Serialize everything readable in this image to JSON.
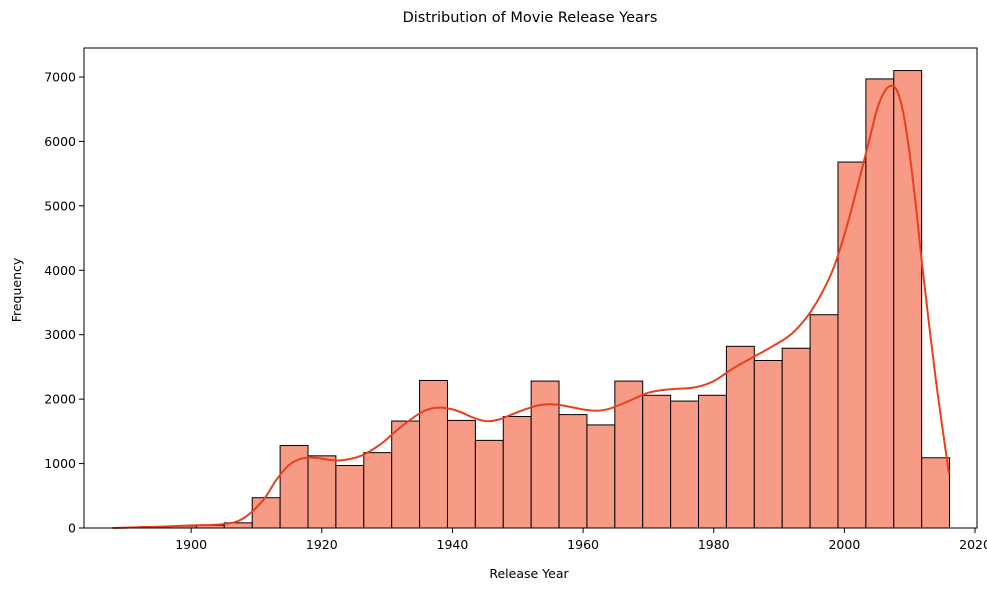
{
  "chart_data": {
    "type": "bar",
    "subtype": "histogram",
    "title": "Distribution of Movie Release Years",
    "xlabel": "Release Year",
    "ylabel": "Frequency",
    "xlim": [
      1883.6,
      2020.3
    ],
    "ylim": [
      0,
      7450
    ],
    "x_ticks": [
      1900,
      1920,
      1940,
      1960,
      1980,
      2000,
      2020
    ],
    "y_ticks": [
      0,
      1000,
      2000,
      3000,
      4000,
      5000,
      6000,
      7000
    ],
    "bins": {
      "start": 1888,
      "width": 4.27,
      "counts": [
        5,
        20,
        30,
        40,
        80,
        470,
        1280,
        1120,
        970,
        1170,
        1660,
        2290,
        1670,
        1360,
        1730,
        2280,
        1760,
        1600,
        2280,
        2060,
        1970,
        2060,
        2820,
        2600,
        2790,
        3310,
        5680,
        6970,
        7100,
        1090
      ]
    },
    "kde": {
      "x": [
        1888,
        1895,
        1900,
        1905,
        1908,
        1911,
        1913,
        1915,
        1917,
        1919,
        1921,
        1923,
        1926,
        1929,
        1932,
        1935,
        1937,
        1939,
        1941,
        1943,
        1945,
        1947,
        1950,
        1953,
        1955,
        1957,
        1960,
        1962,
        1964,
        1967,
        1970,
        1973,
        1977,
        1980,
        1983,
        1986,
        1989,
        1992,
        1995,
        1998,
        2000,
        2002,
        2004,
        2005,
        2006,
        2007,
        2008,
        2009,
        2010,
        2011,
        2012,
        2014,
        2016
      ],
      "y": [
        0,
        20,
        40,
        60,
        150,
        430,
        740,
        980,
        1080,
        1090,
        1060,
        1050,
        1120,
        1300,
        1560,
        1780,
        1860,
        1860,
        1810,
        1720,
        1660,
        1680,
        1800,
        1900,
        1920,
        1900,
        1840,
        1820,
        1850,
        1970,
        2100,
        2150,
        2180,
        2280,
        2480,
        2650,
        2820,
        3020,
        3380,
        3950,
        4550,
        5300,
        6100,
        6500,
        6750,
        6860,
        6800,
        6450,
        5800,
        4950,
        4000,
        2300,
        850
      ]
    },
    "bar_color": "#f79b86",
    "bar_edge_color": "#000000",
    "kde_color": "#e8401c",
    "grid": false,
    "legend": "none"
  }
}
